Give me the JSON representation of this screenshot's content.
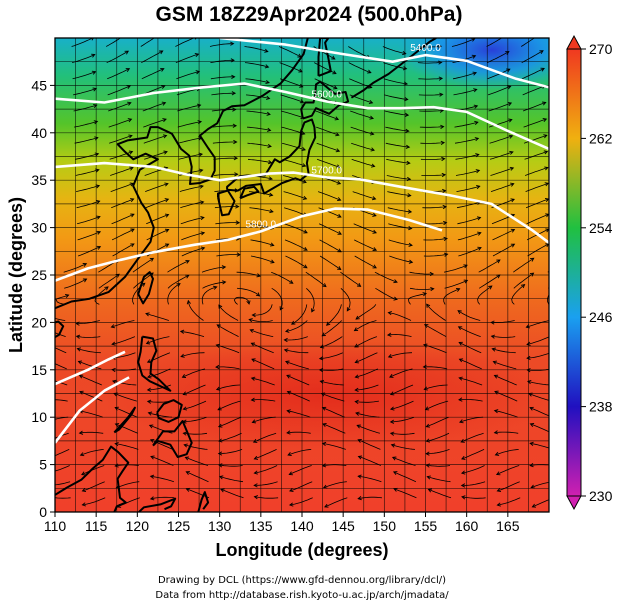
{
  "chart_data": {
    "type": "heatmap",
    "title": "GSM 18Z29Apr2024 (500.0hPa)",
    "xlabel": "Longitude (degrees)",
    "ylabel": "Latitude (degrees)",
    "xlim": [
      110,
      170
    ],
    "ylim": [
      0,
      50
    ],
    "x_ticks": [
      110,
      115,
      120,
      125,
      130,
      135,
      140,
      145,
      150,
      155,
      160,
      165
    ],
    "y_ticks": [
      0,
      5,
      10,
      15,
      20,
      25,
      30,
      35,
      40,
      45
    ],
    "grid": true,
    "colorbar": {
      "range": [
        230,
        270
      ],
      "ticks": [
        230,
        238,
        246,
        254,
        262,
        270
      ],
      "colors": [
        "#c020a0",
        "#2010c0",
        "#1aa0f0",
        "#20c040",
        "#f0b010",
        "#f03820"
      ]
    },
    "contours": [
      {
        "label": "5400.0",
        "points": [
          [
            130,
            50
          ],
          [
            138,
            49.3
          ],
          [
            145,
            48.3
          ],
          [
            151,
            47.5
          ],
          [
            155,
            48.2
          ],
          [
            160,
            47.6
          ],
          [
            166,
            45.7
          ],
          [
            170,
            44.8
          ]
        ]
      },
      {
        "label": "5600.0",
        "points": [
          [
            110,
            43.6
          ],
          [
            116,
            43.2
          ],
          [
            122,
            44.2
          ],
          [
            128,
            44.8
          ],
          [
            133,
            45.2
          ],
          [
            138,
            44.3
          ],
          [
            143,
            43.3
          ],
          [
            148,
            42.6
          ],
          [
            152,
            42.6
          ],
          [
            156,
            42.7
          ],
          [
            160,
            42.2
          ],
          [
            165,
            40.2
          ],
          [
            170,
            38.3
          ]
        ]
      },
      {
        "label": "5700.0",
        "points": [
          [
            110,
            36.4
          ],
          [
            116,
            36.8
          ],
          [
            122,
            36.4
          ],
          [
            126,
            35.6
          ],
          [
            130,
            35
          ],
          [
            136,
            35.7
          ],
          [
            139,
            35.8
          ],
          [
            143,
            35.3
          ],
          [
            147,
            35.1
          ],
          [
            152,
            34.3
          ],
          [
            158,
            33.4
          ],
          [
            163,
            32.5
          ],
          [
            168,
            29.7
          ],
          [
            170,
            28.4
          ]
        ]
      },
      {
        "label": "5800.0",
        "points": [
          [
            110,
            24.4
          ],
          [
            114,
            25.7
          ],
          [
            118,
            26.6
          ],
          [
            122,
            27.4
          ],
          [
            127,
            28.2
          ],
          [
            131,
            28.7
          ],
          [
            135,
            29.6
          ],
          [
            140,
            31.2
          ],
          [
            144,
            32
          ],
          [
            148,
            31.9
          ],
          [
            153,
            30.8
          ],
          [
            157,
            29.7
          ]
        ]
      },
      {
        "label": "",
        "points": [
          [
            110,
            13.5
          ],
          [
            114,
            15
          ],
          [
            116.5,
            16.1
          ],
          [
            118.5,
            16.9
          ]
        ]
      },
      {
        "label": "",
        "points": [
          [
            110,
            7.3
          ],
          [
            113,
            10.7
          ],
          [
            116,
            12.8
          ],
          [
            119,
            14.2
          ]
        ]
      }
    ]
  },
  "credits": {
    "line1": "Drawing by DCL (https://www.gfd-dennou.org/library/dcl/)",
    "line2": "Data from http://database.rish.kyoto-u.ac.jp/arch/jmadata/"
  }
}
